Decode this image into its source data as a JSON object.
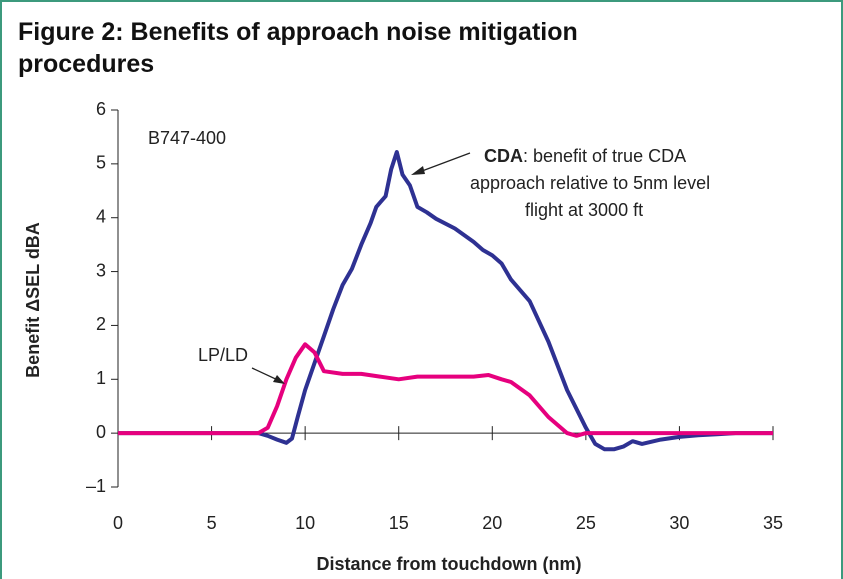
{
  "chart_data": {
    "type": "line",
    "title": "Figure 2: Benefits of approach noise mitigation procedures",
    "xlabel": "Distance from touchdown (nm)",
    "ylabel": "Benefit ΔSEL dBA",
    "xlim": [
      0,
      35
    ],
    "ylim": [
      -1,
      6
    ],
    "xticks": [
      0,
      5,
      10,
      15,
      20,
      25,
      30,
      35
    ],
    "yticks": [
      {
        "value": -1,
        "label": "–1"
      },
      0,
      1,
      2,
      3,
      4,
      5,
      6
    ],
    "annotations": [
      {
        "text": "B747-400"
      },
      {
        "lines": [
          ": benefit of true CDA",
          "approach relative to 5nm level",
          "flight at 3000 ft"
        ]
      }
    ],
    "series": [
      {
        "name": "CDA",
        "color": "#2e3192",
        "x": [
          0,
          7.5,
          8,
          8.5,
          9,
          9.3,
          9.6,
          10,
          10.5,
          11,
          11.5,
          12,
          12.5,
          13,
          13.5,
          13.8,
          14.3,
          14.6,
          14.9,
          15.2,
          15.6,
          16,
          16.5,
          17,
          18,
          19,
          19.5,
          20,
          20.5,
          21,
          22,
          23,
          24,
          25,
          25.5,
          26,
          26.5,
          27,
          27.5,
          28,
          29,
          30,
          31,
          32,
          33,
          35
        ],
        "values": [
          0,
          0,
          -0.05,
          -0.12,
          -0.18,
          -0.1,
          0.3,
          0.8,
          1.3,
          1.8,
          2.3,
          2.75,
          3.05,
          3.5,
          3.9,
          4.2,
          4.4,
          4.9,
          5.22,
          4.8,
          4.6,
          4.2,
          4.1,
          3.98,
          3.8,
          3.55,
          3.4,
          3.3,
          3.15,
          2.85,
          2.45,
          1.7,
          0.8,
          0.1,
          -0.2,
          -0.3,
          -0.3,
          -0.25,
          -0.15,
          -0.2,
          -0.12,
          -0.07,
          -0.04,
          -0.02,
          0,
          0
        ]
      },
      {
        "name": "LP/LD",
        "color": "#e6007e",
        "x": [
          0,
          7.5,
          8,
          8.5,
          9,
          9.5,
          10,
          10.5,
          11,
          12,
          13,
          14,
          15,
          16,
          17,
          18,
          19,
          19.8,
          20.5,
          21,
          22,
          23,
          24,
          24.5,
          25,
          35
        ],
        "values": [
          0,
          0,
          0.1,
          0.5,
          1.0,
          1.4,
          1.65,
          1.5,
          1.15,
          1.1,
          1.1,
          1.05,
          1.0,
          1.05,
          1.05,
          1.05,
          1.05,
          1.08,
          1.0,
          0.95,
          0.7,
          0.3,
          0,
          -0.05,
          0,
          0
        ]
      }
    ]
  }
}
